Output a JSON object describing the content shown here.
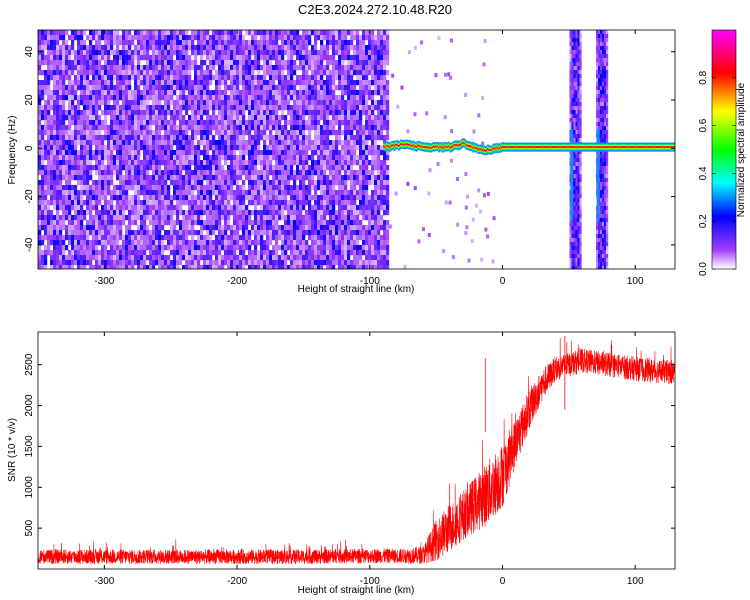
{
  "title": "C2E3.2024.272.10.48.R20",
  "chart_data": [
    {
      "type": "heatmap",
      "title": "",
      "xlabel": "Height of straight line (km)",
      "ylabel": "Frequency (Hz)",
      "xlim": [
        -350,
        130
      ],
      "ylim": [
        -50,
        49
      ],
      "xticks": [
        -300,
        -200,
        -100,
        0,
        100
      ],
      "yticks": [
        -40,
        -20,
        0,
        20,
        40
      ],
      "colorbar": {
        "label": "Normalized spectral amplitude",
        "range": [
          0.0,
          1.0
        ],
        "ticks": [
          0.0,
          0.2,
          0.4,
          0.6,
          0.8
        ],
        "colors": [
          "#ffffff",
          "#8000ff",
          "#0000ff",
          "#00ffff",
          "#00ff00",
          "#ffff00",
          "#ff0000",
          "#ff00ff"
        ]
      },
      "noise_region": {
        "x_range": [
          -350,
          -87
        ],
        "level": 0.15
      },
      "tone": [
        {
          "x": -90,
          "f": 0.5
        },
        {
          "x": -75,
          "f": 1.5
        },
        {
          "x": -60,
          "f": 0.5
        },
        {
          "x": -40,
          "f": 0.5
        },
        {
          "x": -30,
          "f": 2.0
        },
        {
          "x": -15,
          "f": -1.0
        },
        {
          "x": 0,
          "f": 0.5
        },
        {
          "x": 50,
          "f": 0.5
        },
        {
          "x": 80,
          "f": 0.5
        },
        {
          "x": 130,
          "f": 0.5
        }
      ],
      "broadband_bands": [
        {
          "x_range": [
            52,
            57
          ],
          "f_range": [
            -50,
            49
          ]
        },
        {
          "x_range": [
            72,
            77
          ],
          "f_range": [
            -50,
            49
          ]
        }
      ]
    },
    {
      "type": "line",
      "title": "",
      "xlabel": "Height of straight line (km)",
      "ylabel": "SNR (10 * v/v)",
      "xlim": [
        -350,
        130
      ],
      "ylim": [
        0,
        2900
      ],
      "xticks": [
        -300,
        -200,
        -100,
        0,
        100
      ],
      "yticks": [
        500,
        1000,
        1500,
        2000,
        2500
      ],
      "series": [
        {
          "color": "#ff0000",
          "x": [
            -350,
            -300,
            -250,
            -200,
            -150,
            -100,
            -75,
            -60,
            -50,
            -40,
            -30,
            -20,
            -10,
            0,
            10,
            20,
            30,
            40,
            60,
            80,
            100,
            130
          ],
          "mean": [
            150,
            150,
            150,
            150,
            150,
            160,
            160,
            170,
            350,
            500,
            650,
            800,
            950,
            1150,
            1550,
            1950,
            2250,
            2450,
            2550,
            2500,
            2450,
            2400
          ],
          "spread": [
            90,
            90,
            90,
            90,
            90,
            90,
            90,
            110,
            250,
            300,
            300,
            350,
            400,
            400,
            300,
            250,
            200,
            150,
            150,
            150,
            150,
            150
          ],
          "peaks": [
            {
              "x": -13,
              "y": 2580
            },
            {
              "x": 47,
              "y": 2850
            }
          ]
        }
      ]
    }
  ]
}
